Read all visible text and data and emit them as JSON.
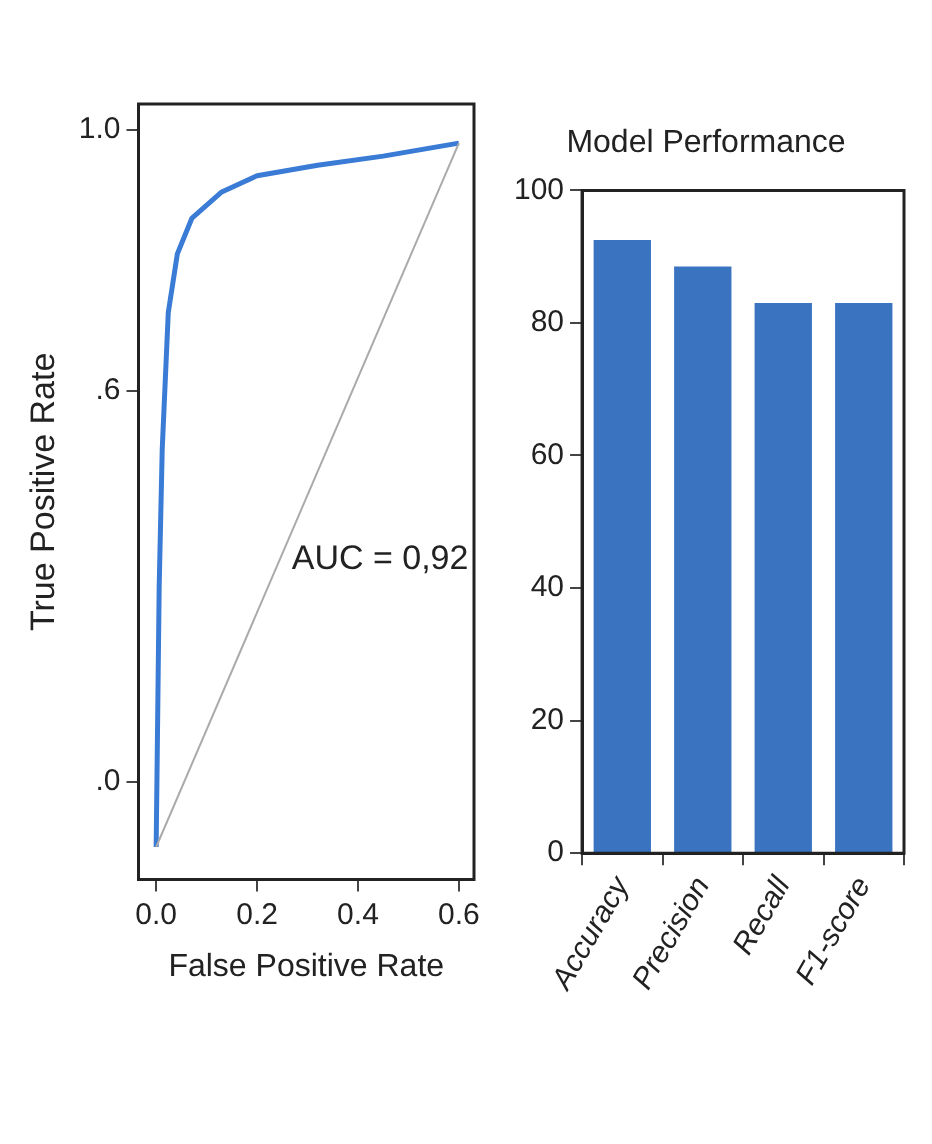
{
  "chart_data": [
    {
      "type": "line",
      "xlabel": "False Positive Rate",
      "ylabel": "True Positive Rate",
      "xlim": [
        -0.035,
        0.63
      ],
      "xticks": [
        {
          "value": 0,
          "label": "0.0"
        },
        0.2,
        0.4,
        0.6
      ],
      "ylim": [
        -0.15,
        1.04
      ],
      "yticks": [
        {
          "value": 0,
          "label": ".0"
        },
        {
          "value": 0.6,
          "label": ".6"
        },
        {
          "value": 1,
          "label": "1.0"
        }
      ],
      "grid": false,
      "legend": false,
      "marker": "none",
      "line_style": "solid",
      "annotations": [
        "AUC = 0,92"
      ],
      "series": [
        {
          "color": "#3a7bd5",
          "x": [
            0,
            0.006,
            0.012,
            0.024,
            0.042,
            0.071,
            0.13,
            0.2,
            0.32,
            0.45,
            0.6
          ],
          "values": [
            -0.1,
            0.3,
            0.51,
            0.72,
            0.81,
            0.865,
            0.905,
            0.93,
            0.946,
            0.96,
            0.98
          ]
        },
        {
          "color": "#aaaaaa",
          "x": [
            0,
            0.6
          ],
          "values": [
            -0.1,
            0.98
          ]
        }
      ]
    },
    {
      "type": "bar",
      "title": "Model Performance",
      "categories": [
        "Accuracy",
        "Precision",
        "Recall",
        "F1-score"
      ],
      "values": [
        92.5,
        88.5,
        83,
        83
      ],
      "color": "#3a74c0",
      "ylim": [
        0,
        100
      ],
      "yticks": [
        0,
        20,
        40,
        60,
        80,
        100
      ],
      "grid": false,
      "legend": false
    }
  ]
}
